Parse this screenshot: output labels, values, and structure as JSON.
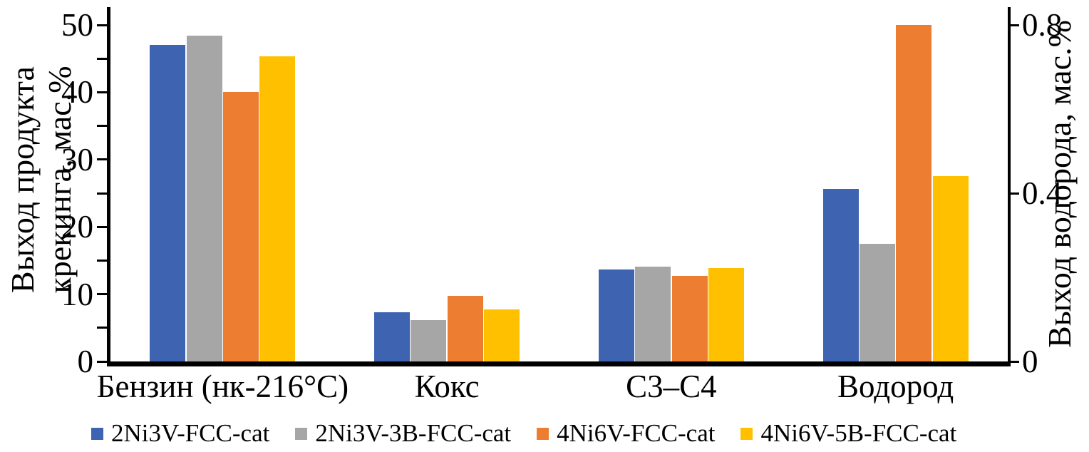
{
  "chart_data": {
    "type": "bar",
    "title": "",
    "categories": [
      "Бензин (нк-216°С)",
      "Кокс",
      "С3–С4",
      "Водород"
    ],
    "values_axis_per_category": [
      "left",
      "left",
      "left",
      "right"
    ],
    "left_axis": {
      "label_lines": [
        "Выход продукта",
        "крекинга, мас.%"
      ],
      "min": 0,
      "max": 50,
      "major_tick_values": [
        0,
        10,
        20,
        30,
        40,
        50
      ],
      "major_tick_labels": [
        "0",
        "10",
        "20",
        "30",
        "40",
        "50"
      ],
      "minor_tick_values": [
        5,
        15,
        25,
        35,
        45
      ]
    },
    "right_axis": {
      "label": "Выход водорода, мас.%",
      "min": 0,
      "max": 0.8,
      "tick_values": [
        0,
        0.4,
        0.8
      ],
      "tick_labels": [
        "0",
        "0.4",
        "0.8"
      ]
    },
    "series": [
      {
        "name": "2Ni3V-FCC-cat",
        "color": "#3E63B0",
        "values": [
          47.0,
          7.3,
          13.7,
          0.41
        ]
      },
      {
        "name": "2Ni3V-3B-FCC-cat",
        "color": "#A6A6A6",
        "values": [
          48.4,
          6.1,
          14.1,
          0.28
        ]
      },
      {
        "name": "4Ni6V-FCC-cat",
        "color": "#ED7D31",
        "values": [
          40.0,
          9.7,
          12.7,
          0.8
        ]
      },
      {
        "name": "4Ni6V-5B-FCC-cat",
        "color": "#FFC000",
        "values": [
          45.3,
          7.7,
          13.9,
          0.44
        ]
      }
    ],
    "grid": false,
    "legend_position": "bottom"
  }
}
